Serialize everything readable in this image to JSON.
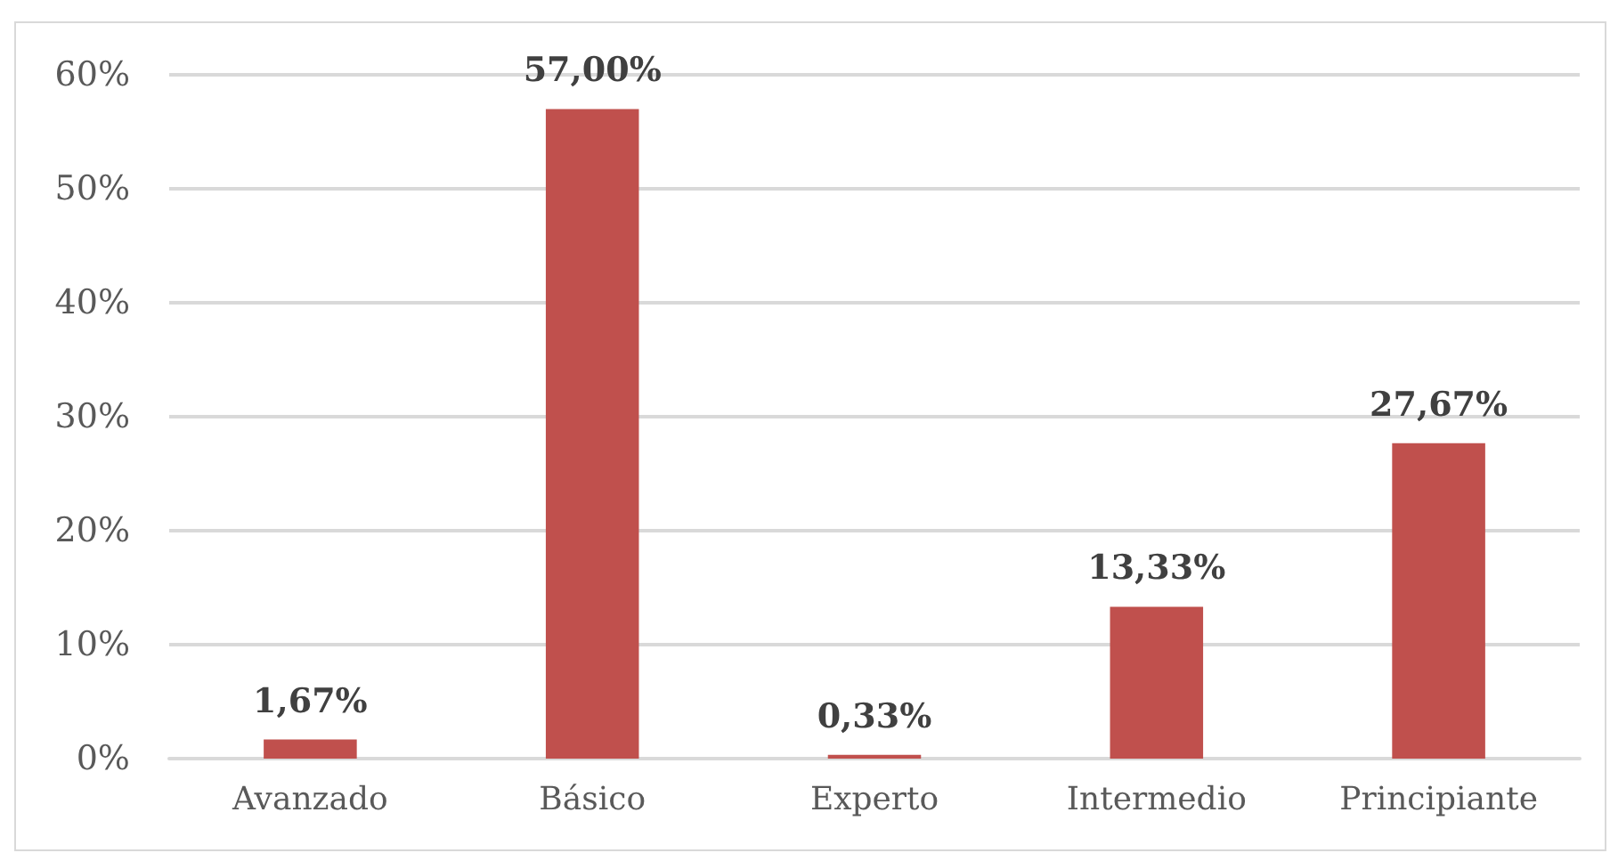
{
  "chart_data": {
    "type": "bar",
    "categories": [
      "Avanzado",
      "Básico",
      "Experto",
      "Intermedio",
      "Principiante"
    ],
    "values": [
      1.67,
      57.0,
      0.33,
      13.33,
      27.67
    ],
    "value_labels": [
      "1,67%",
      "57,00%",
      "0,33%",
      "13,33%",
      "27,67%"
    ],
    "color": "#c0504d",
    "ylim": [
      0,
      60
    ],
    "yticks": [
      {
        "value": 0,
        "label": "0%"
      },
      {
        "value": 10,
        "label": "10%"
      },
      {
        "value": 20,
        "label": "20%"
      },
      {
        "value": 30,
        "label": "30%"
      },
      {
        "value": 40,
        "label": "40%"
      },
      {
        "value": 50,
        "label": "50%"
      },
      {
        "value": 60,
        "label": "60%"
      }
    ],
    "grid": "y"
  }
}
